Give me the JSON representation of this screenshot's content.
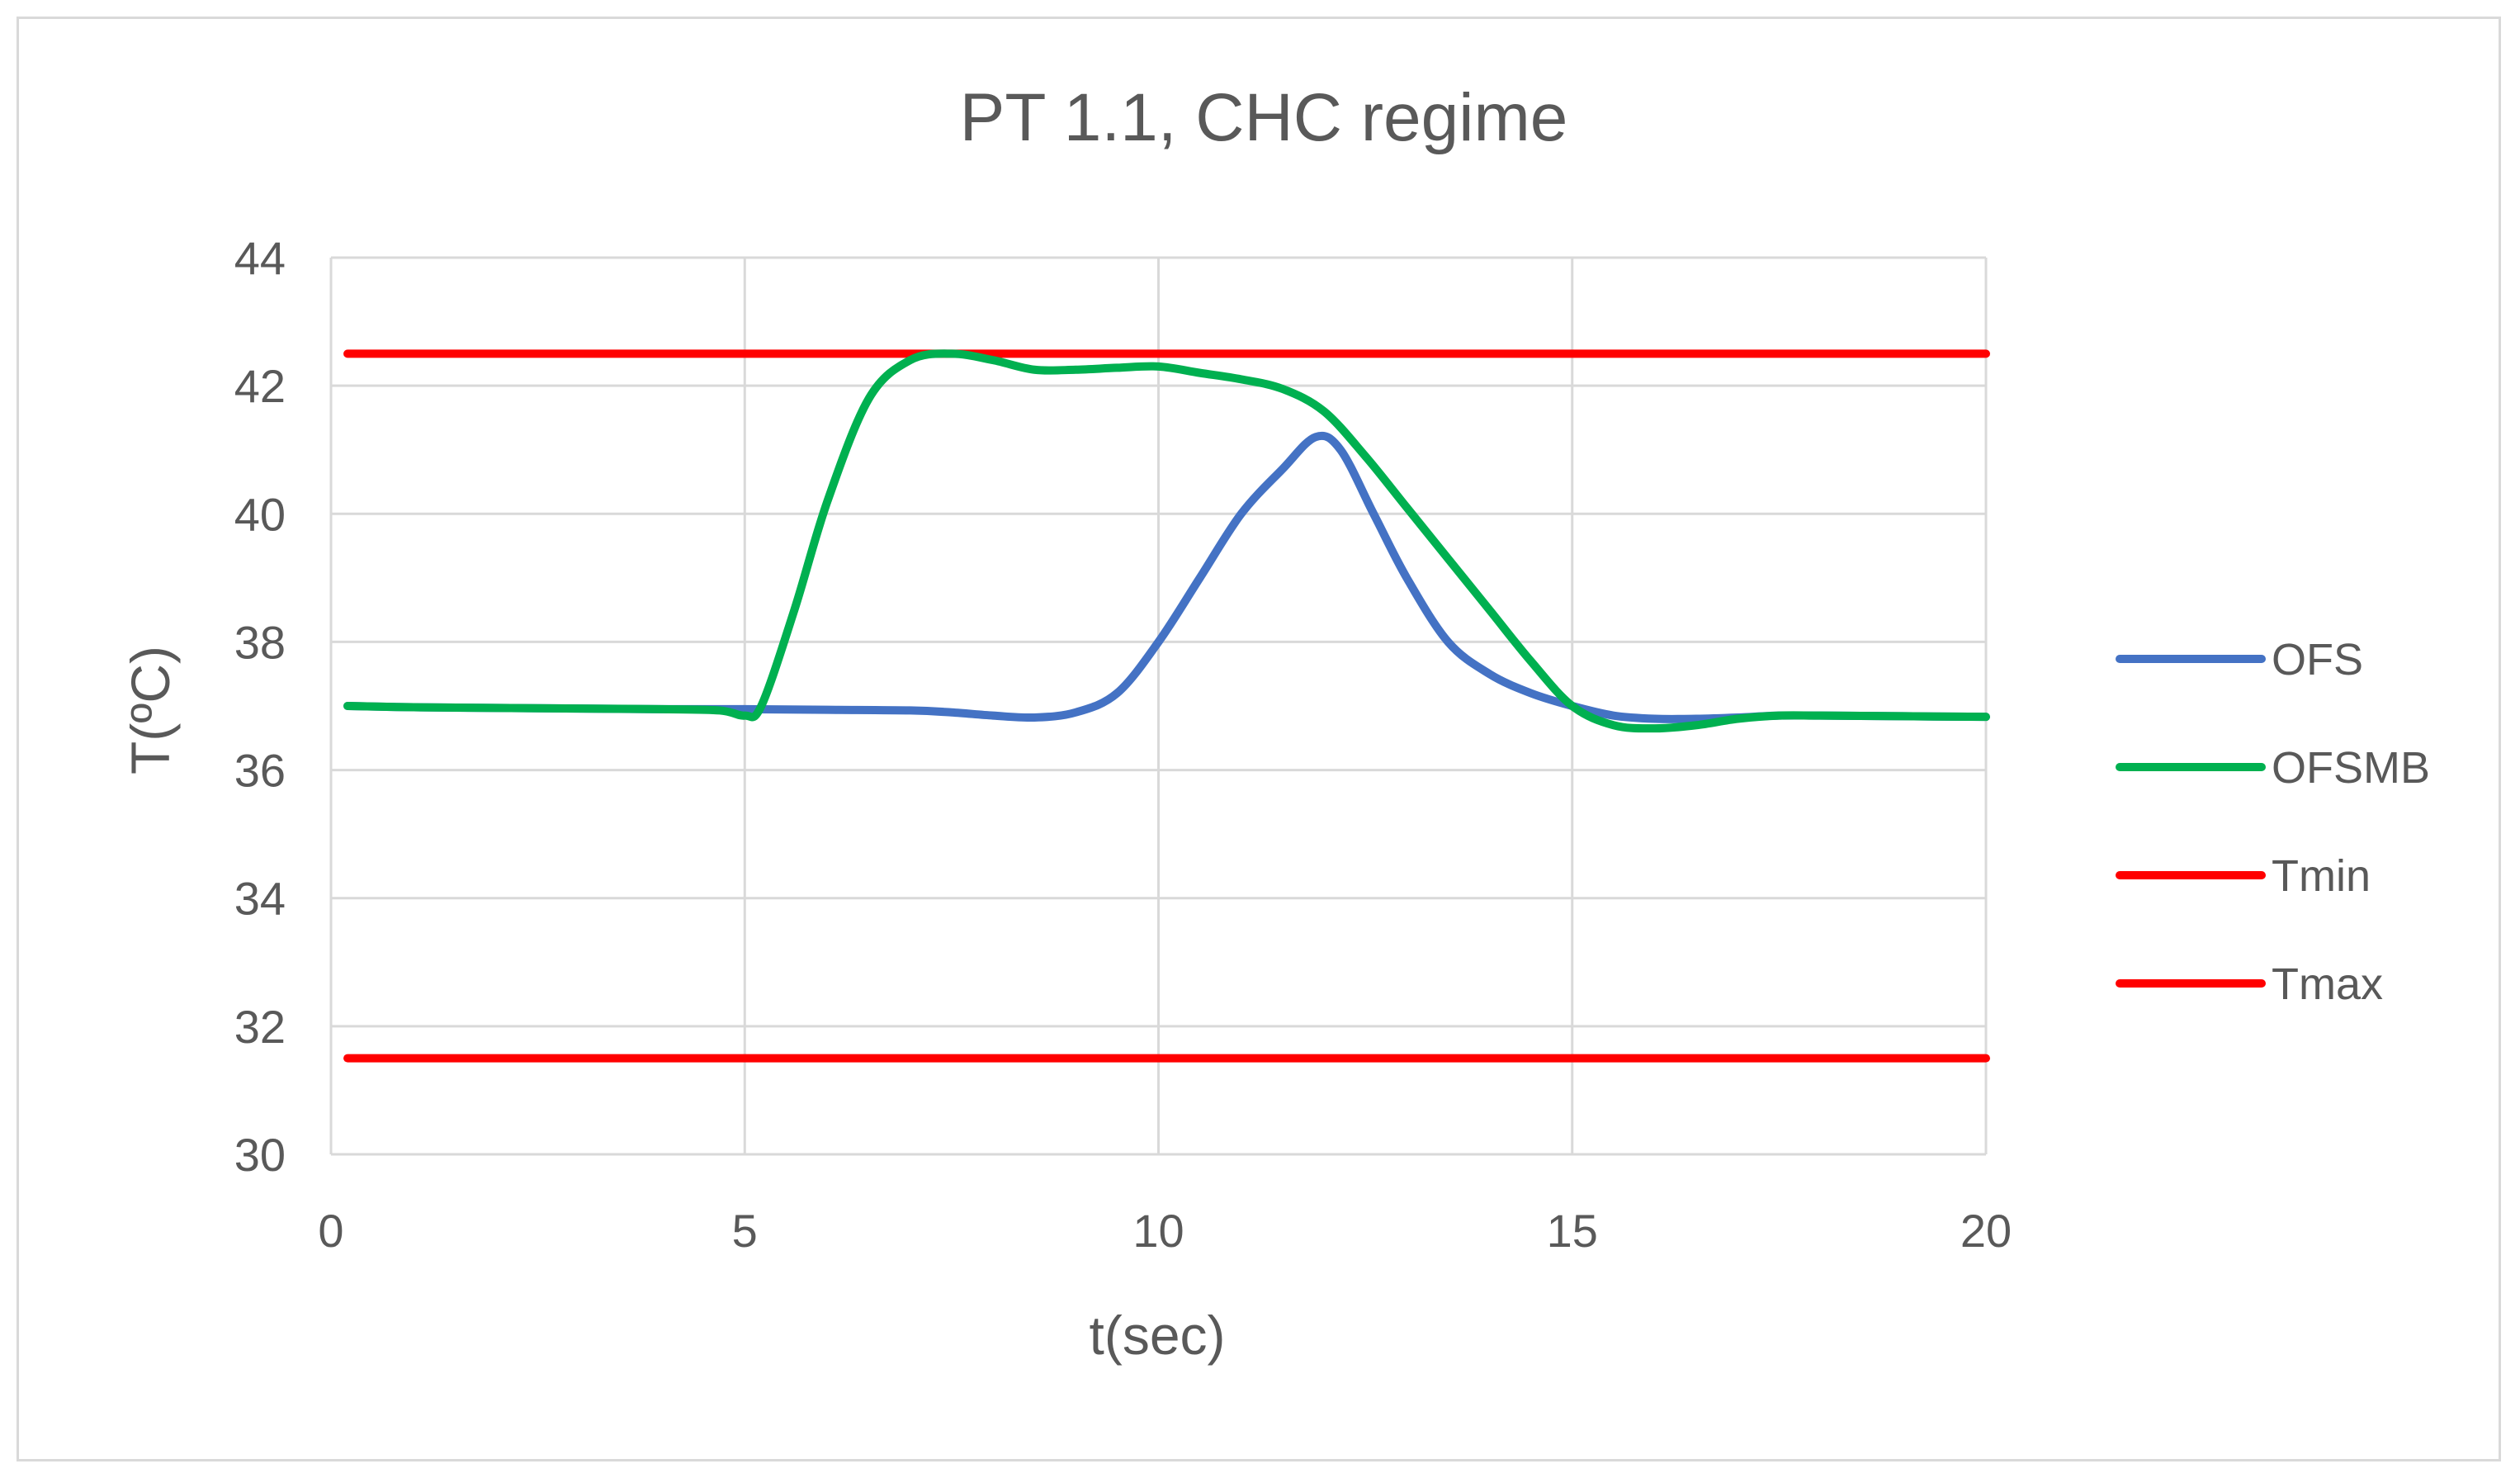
{
  "chart_data": {
    "type": "line",
    "title": "PT 1.1, CHC regime",
    "xlabel": "t(sec)",
    "ylabel": "T(ºC)",
    "xlim": [
      0,
      20
    ],
    "ylim": [
      30,
      44
    ],
    "x_ticks": [
      "0",
      "5",
      "10",
      "15",
      "20"
    ],
    "y_ticks": [
      "30",
      "32",
      "34",
      "36",
      "38",
      "40",
      "42",
      "44"
    ],
    "grid": true,
    "legend_position": "right",
    "series": [
      {
        "name": "OFS",
        "color": "#4472c4",
        "x": [
          0.2,
          1,
          2,
          3,
          4,
          5,
          6,
          7,
          7.5,
          8,
          8.5,
          9,
          9.5,
          10,
          10.5,
          11,
          11.5,
          11.9,
          12.2,
          12.6,
          13,
          13.5,
          14,
          14.5,
          15,
          15.5,
          16,
          16.5,
          17,
          17.5,
          18,
          19,
          20
        ],
        "y": [
          37.0,
          36.98,
          36.97,
          36.96,
          36.95,
          36.95,
          36.94,
          36.93,
          36.9,
          36.85,
          36.82,
          36.9,
          37.2,
          38.0,
          39.0,
          40.0,
          40.7,
          41.2,
          41.0,
          40.0,
          39.0,
          38.0,
          37.5,
          37.2,
          37.0,
          36.85,
          36.8,
          36.8,
          36.82,
          36.85,
          36.85,
          36.84,
          36.83
        ]
      },
      {
        "name": "OFSMB",
        "color": "#00b050",
        "x": [
          0.2,
          1,
          2,
          3,
          4,
          4.7,
          5.0,
          5.2,
          5.6,
          6.0,
          6.5,
          7.0,
          7.5,
          8.0,
          8.5,
          9.0,
          9.5,
          10.0,
          10.5,
          11.0,
          11.5,
          12.0,
          12.5,
          13.0,
          13.5,
          14.0,
          14.5,
          15.0,
          15.5,
          16.0,
          16.5,
          17.0,
          17.5,
          18.0,
          19.0,
          20.0
        ],
        "y": [
          37.0,
          36.98,
          36.97,
          36.96,
          36.95,
          36.93,
          36.85,
          37.0,
          38.5,
          40.2,
          41.8,
          42.4,
          42.5,
          42.4,
          42.25,
          42.25,
          42.28,
          42.3,
          42.2,
          42.1,
          41.95,
          41.6,
          40.9,
          40.1,
          39.3,
          38.5,
          37.7,
          37.0,
          36.7,
          36.65,
          36.7,
          36.8,
          36.85,
          36.85,
          36.84,
          36.83
        ]
      },
      {
        "name": "Tmin",
        "color": "#ff0000",
        "x": [
          0.2,
          20
        ],
        "y": [
          42.5,
          42.5
        ]
      },
      {
        "name": "Tmax",
        "color": "#ff0000",
        "x": [
          0.2,
          20
        ],
        "y": [
          31.5,
          31.5
        ]
      }
    ]
  }
}
